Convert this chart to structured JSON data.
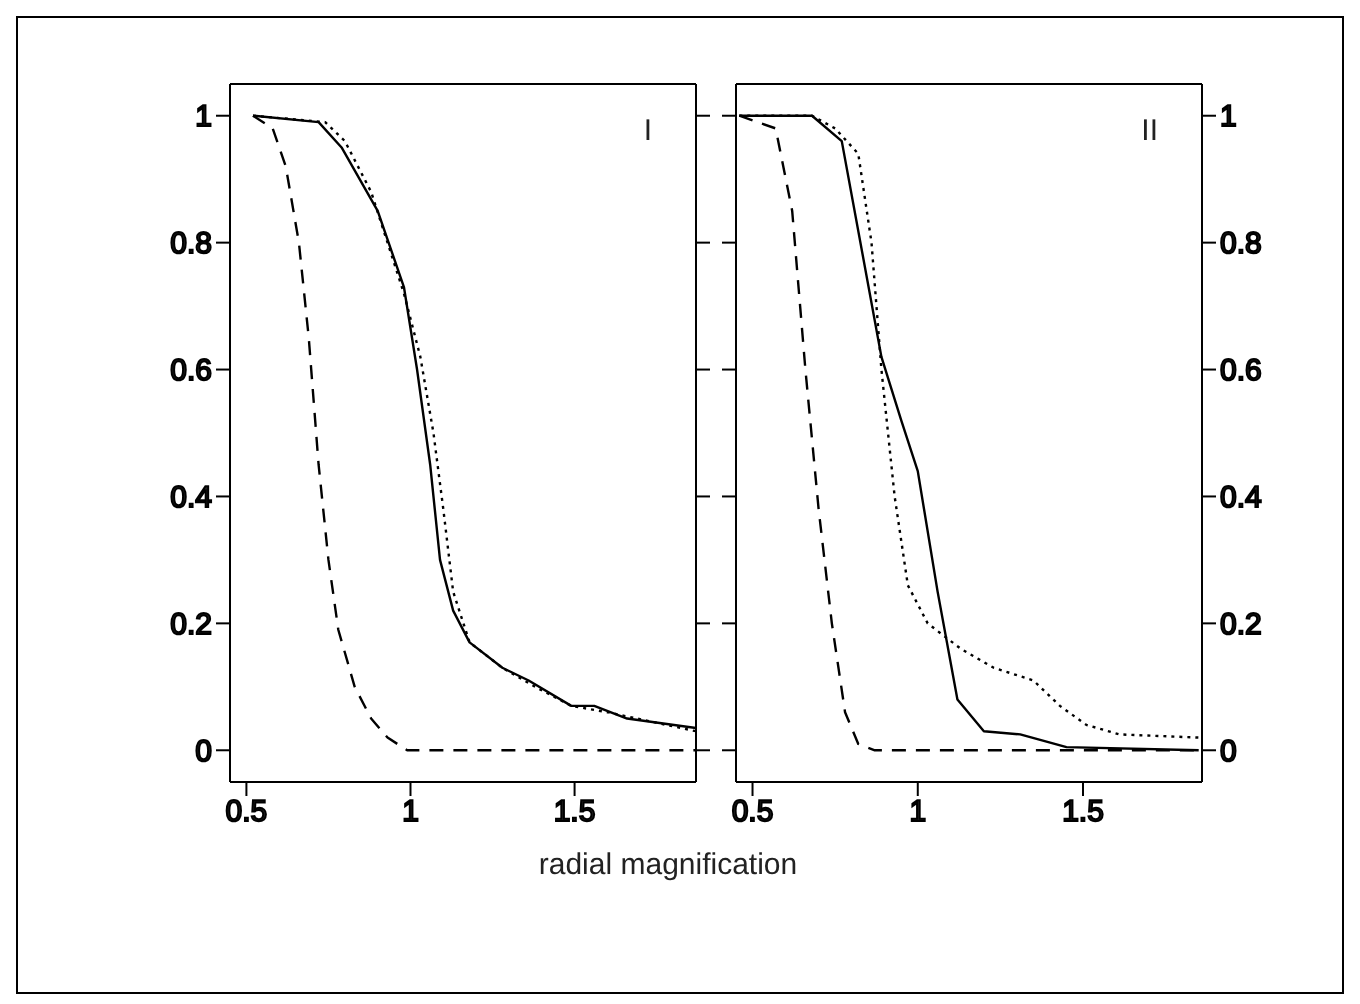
{
  "chart_data": [
    {
      "type": "line",
      "xlabel": "radial magnification",
      "annotations": [
        "I"
      ],
      "xlim": [
        0.45,
        1.87
      ],
      "xticks": [
        0.5,
        1,
        1.5
      ],
      "ylim": [
        -0.05,
        1.05
      ],
      "yticks": [
        0,
        0.2,
        0.4,
        0.6,
        0.8,
        1
      ],
      "marker": "none",
      "series": [
        {
          "color": "#000000",
          "line_style": "solid",
          "x": [
            0.52,
            0.72,
            0.79,
            0.9,
            0.98,
            1.02,
            1.06,
            1.09,
            1.13,
            1.18,
            1.28,
            1.36,
            1.49,
            1.56,
            1.66,
            1.87
          ],
          "values": [
            1,
            0.99,
            0.95,
            0.85,
            0.73,
            0.6,
            0.45,
            0.3,
            0.22,
            0.17,
            0.13,
            0.11,
            0.07,
            0.07,
            0.05,
            0.035
          ]
        },
        {
          "color": "#000000",
          "line_style": "dotted",
          "x": [
            0.52,
            0.74,
            0.8,
            0.88,
            0.98,
            1.03,
            1.07,
            1.1,
            1.13,
            1.18,
            1.28,
            1.38,
            1.49,
            1.6,
            1.87
          ],
          "values": [
            1,
            0.99,
            0.96,
            0.88,
            0.72,
            0.62,
            0.5,
            0.38,
            0.25,
            0.17,
            0.13,
            0.1,
            0.07,
            0.06,
            0.03
          ]
        },
        {
          "color": "#000000",
          "line_style": "dashed",
          "x": [
            0.52,
            0.58,
            0.62,
            0.66,
            0.69,
            0.72,
            0.75,
            0.78,
            0.83,
            0.88,
            0.93,
            0.99,
            1.87
          ],
          "values": [
            1,
            0.98,
            0.92,
            0.8,
            0.65,
            0.45,
            0.3,
            0.19,
            0.1,
            0.05,
            0.02,
            0,
            0
          ]
        }
      ]
    },
    {
      "type": "line",
      "annotations": [
        "II"
      ],
      "xlim": [
        0.45,
        1.86
      ],
      "xticks": [
        0.5,
        1,
        1.5
      ],
      "y2lim": [
        -0.05,
        1.05
      ],
      "y2ticks": [
        0,
        0.2,
        0.4,
        0.6,
        0.8,
        1
      ],
      "marker": "none",
      "series": [
        {
          "color": "#000000",
          "line_style": "solid",
          "axis": "y2",
          "x": [
            0.46,
            0.68,
            0.77,
            0.89,
            0.95,
            1.0,
            1.06,
            1.12,
            1.2,
            1.31,
            1.45,
            1.85
          ],
          "values": [
            1,
            1,
            0.96,
            0.62,
            0.52,
            0.44,
            0.25,
            0.08,
            0.03,
            0.025,
            0.005,
            0
          ]
        },
        {
          "color": "#000000",
          "line_style": "dotted",
          "axis": "y2",
          "x": [
            0.46,
            0.68,
            0.75,
            0.82,
            0.86,
            0.89,
            0.93,
            0.97,
            1.03,
            1.13,
            1.23,
            1.35,
            1.43,
            1.51,
            1.61,
            1.85
          ],
          "values": [
            1,
            1,
            0.98,
            0.94,
            0.8,
            0.6,
            0.4,
            0.26,
            0.2,
            0.16,
            0.13,
            0.11,
            0.07,
            0.04,
            0.025,
            0.02
          ]
        },
        {
          "color": "#000000",
          "line_style": "dashed",
          "axis": "y2",
          "x": [
            0.46,
            0.57,
            0.62,
            0.66,
            0.7,
            0.74,
            0.78,
            0.82,
            0.87,
            1.85
          ],
          "values": [
            1,
            0.98,
            0.85,
            0.6,
            0.38,
            0.2,
            0.06,
            0.01,
            0,
            0
          ]
        }
      ]
    }
  ]
}
